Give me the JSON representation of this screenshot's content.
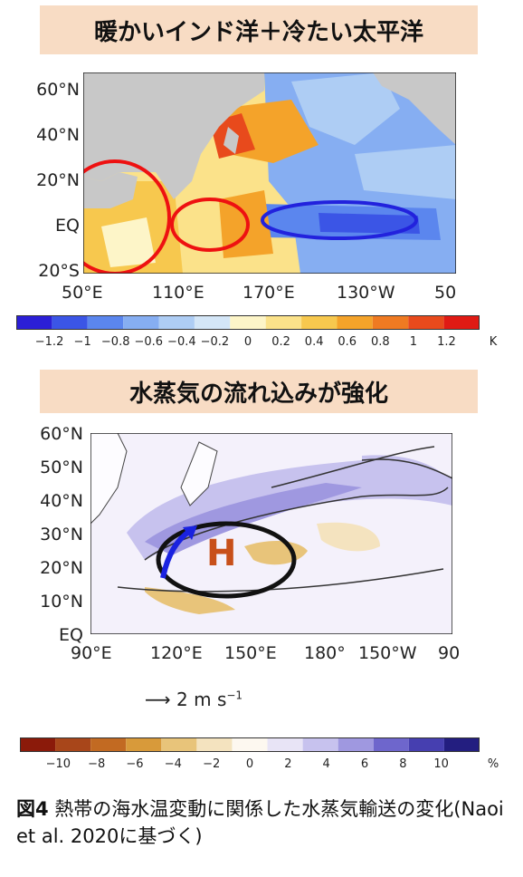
{
  "panel1": {
    "title": "暖かいインド洋＋冷たい太平洋",
    "y_ticks": [
      "60°N",
      "40°N",
      "20°N",
      "EQ",
      "20°S"
    ],
    "x_ticks": [
      "50°E",
      "110°E",
      "170°E",
      "130°W",
      "50"
    ],
    "colorbar_ticks": [
      "−1.2",
      "−1",
      "−0.8",
      "−0.6",
      "−0.4",
      "−0.2",
      "0",
      "0.2",
      "0.4",
      "0.6",
      "0.8",
      "1",
      "1.2"
    ],
    "colorbar_unit": "K",
    "colors": [
      "#2b1fd6",
      "#3b55e6",
      "#5b86ee",
      "#86aef2",
      "#aecdf4",
      "#d4e6f7",
      "#fdf5c8",
      "#fbe28a",
      "#f7c84e",
      "#f4a32a",
      "#ef7a22",
      "#e84a1c",
      "#e01a14"
    ]
  },
  "panel2": {
    "title": "水蒸気の流れ込みが強化",
    "y_ticks": [
      "60°N",
      "50°N",
      "40°N",
      "30°N",
      "20°N",
      "10°N",
      "EQ"
    ],
    "x_ticks": [
      "90°E",
      "120°E",
      "150°E",
      "180°",
      "150°W",
      "90"
    ],
    "high_label": "H",
    "vector_scale_label": "2 m s",
    "vector_scale_exp": "−1",
    "colorbar_ticks": [
      "−10",
      "−8",
      "−6",
      "−4",
      "−2",
      "0",
      "2",
      "4",
      "6",
      "8",
      "10"
    ],
    "colorbar_unit": "%",
    "colors": [
      "#8b1a0a",
      "#a8461a",
      "#c26a22",
      "#d89a3a",
      "#e8c47a",
      "#f4e3bf",
      "#fdf8f0",
      "#e8e4f6",
      "#c7c2ee",
      "#9f98e0",
      "#6e66cc",
      "#463fb0",
      "#231e80"
    ]
  },
  "caption": {
    "label": "図4",
    "text": "熱帯の海水温変動に関係した水蒸気輸送の変化(Naoi et al. 2020に基づく)"
  }
}
